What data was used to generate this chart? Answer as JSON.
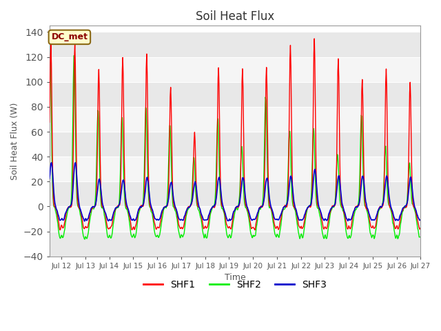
{
  "title": "Soil Heat Flux",
  "xlabel": "Time",
  "ylabel": "Soil Heat Flux (W)",
  "ylim": [
    -40,
    145
  ],
  "yticks": [
    -40,
    -20,
    0,
    20,
    40,
    60,
    80,
    100,
    120,
    140
  ],
  "bg_color": "#ffffff",
  "plot_bg_color": "#ffffff",
  "band_colors": [
    "#e8e8e8",
    "#f5f5f5"
  ],
  "shf1_color": "#ff0000",
  "shf2_color": "#00ee00",
  "shf3_color": "#0000cc",
  "legend_label": "DC_met",
  "start_day": 11.5,
  "end_day": 27.0,
  "xtick_days": [
    12,
    13,
    14,
    15,
    16,
    17,
    18,
    19,
    20,
    21,
    22,
    23,
    24,
    25,
    26,
    27
  ],
  "xtick_labels": [
    "Jul 12",
    "Jul 13",
    "Jul 14",
    "Jul 15",
    "Jul 16",
    "Jul 17",
    "Jul 18",
    "Jul 19",
    "Jul 20",
    "Jul 21",
    "Jul 22",
    "Jul 23",
    "Jul 24",
    "Jul 25",
    "Jul 26",
    "Jul 27"
  ],
  "shf1_peaks": {
    "12": 135,
    "13": 114,
    "14": 124,
    "15": 126,
    "16": 100,
    "17": 62,
    "18": 115,
    "19": 114,
    "20": 114,
    "21": 134,
    "22": 140,
    "23": 123,
    "24": 105,
    "25": 114,
    "26": 103
  },
  "shf2_peaks": {
    "12": 126,
    "13": 80,
    "14": 75,
    "15": 82,
    "16": 67,
    "17": 42,
    "18": 73,
    "19": 50,
    "20": 91,
    "21": 64,
    "22": 65,
    "23": 43,
    "24": 77,
    "25": 50,
    "26": 36
  },
  "shf3_peaks": {
    "12": 36,
    "13": 22,
    "14": 22,
    "15": 24,
    "16": 20,
    "17": 20,
    "18": 24,
    "19": 24,
    "20": 23,
    "21": 25,
    "22": 30,
    "23": 25,
    "24": 25,
    "25": 25,
    "26": 24
  }
}
